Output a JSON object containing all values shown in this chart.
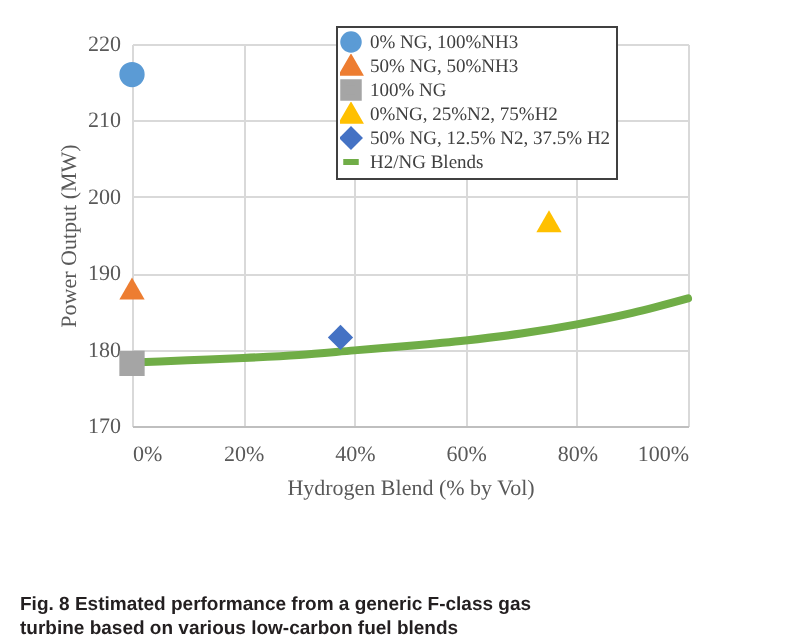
{
  "chart_data": {
    "type": "scatter",
    "xlabel": "Hydrogen Blend (% by Vol)",
    "ylabel": "Power Output (MW)",
    "annotations": [
      "Fig. 8    Estimated performance from a generic F-class gas turbine based on various low-carbon fuel blends"
    ],
    "xlim": [
      0,
      100
    ],
    "xticks": [
      {
        "value": 0,
        "label": "0%"
      },
      {
        "value": 20,
        "label": "20%"
      },
      {
        "value": 40,
        "label": "40%"
      },
      {
        "value": 60,
        "label": "60%"
      },
      {
        "value": 80,
        "label": "80%"
      },
      {
        "value": 100,
        "label": "100%"
      }
    ],
    "ylim": [
      170,
      220
    ],
    "yticks": [
      170,
      180,
      190,
      200,
      210,
      220
    ],
    "grid": true,
    "legend": "top right",
    "series": [
      {
        "name": "0% NG, 100%NH3",
        "color": "#5b9bd5",
        "marker": "circle",
        "x": [
          0
        ],
        "values": [
          216
        ]
      },
      {
        "name": "50% NG, 50%NH3",
        "color": "#ed7d31",
        "marker": "triangle",
        "x": [
          0
        ],
        "values": [
          188
        ]
      },
      {
        "name": "100% NG",
        "color": "#a5a5a5",
        "marker": "square",
        "x": [
          0
        ],
        "values": [
          178.2
        ]
      },
      {
        "name": "0%NG, 25%N2, 75%H2",
        "color": "#ffc000",
        "marker": "triangle",
        "x": [
          75
        ],
        "values": [
          196.8
        ]
      },
      {
        "name": "50% NG, 12.5% N2, 37.5% H2",
        "color": "#4472c4",
        "marker": "diamond",
        "x": [
          37.5
        ],
        "values": [
          181.6
        ]
      },
      {
        "name": "H2/NG Blends",
        "type": "line",
        "color": "#70ad47",
        "marker": "none",
        "x": [
          0,
          10,
          20,
          30,
          40,
          50,
          60,
          70,
          80,
          90,
          100
        ],
        "values": [
          178.3,
          178.6,
          178.9,
          179.3,
          179.9,
          180.5,
          181.2,
          182.1,
          183.3,
          184.8,
          186.7
        ]
      }
    ]
  }
}
